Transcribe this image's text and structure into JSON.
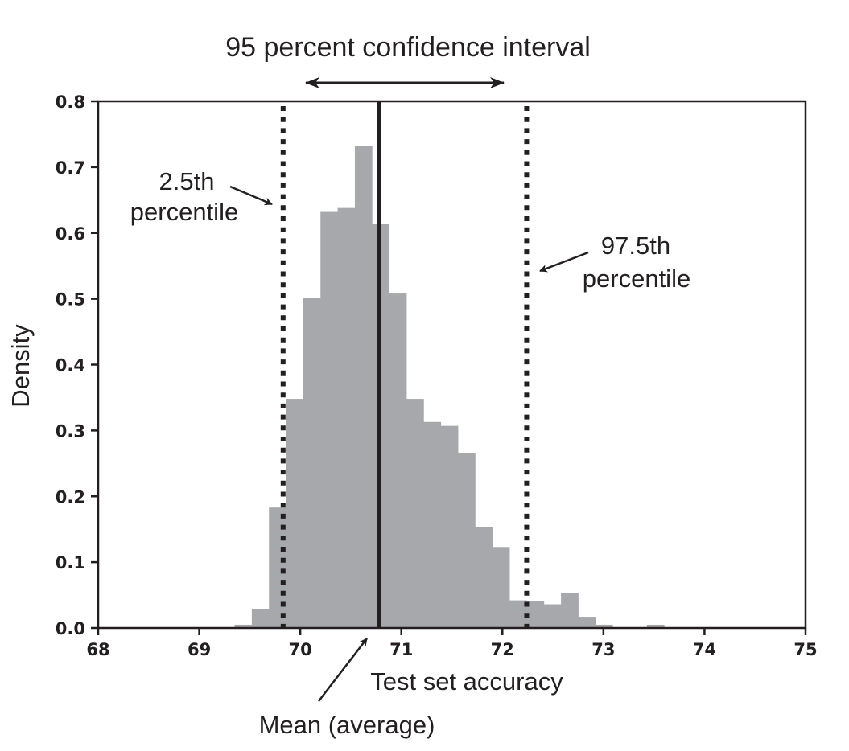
{
  "chart_data": {
    "type": "bar",
    "subtype": "histogram",
    "title": "95 percent confidence interval",
    "xlabel": "Test set accuracy",
    "ylabel": "Density",
    "xlim": [
      68,
      75
    ],
    "ylim": [
      0.0,
      0.8
    ],
    "xticks": [
      68,
      69,
      70,
      71,
      72,
      73,
      74,
      75
    ],
    "yticks": [
      "0.0",
      "0.1",
      "0.2",
      "0.3",
      "0.4",
      "0.5",
      "0.6",
      "0.7",
      "0.8"
    ],
    "grid": false,
    "legend": null,
    "bar_color": "#a7a8ac",
    "bin_width": 0.17,
    "bins": [
      {
        "x0": 69.35,
        "x1": 69.52,
        "density": 0.005
      },
      {
        "x0": 69.52,
        "x1": 69.69,
        "density": 0.029
      },
      {
        "x0": 69.69,
        "x1": 69.86,
        "density": 0.183
      },
      {
        "x0": 69.86,
        "x1": 70.03,
        "density": 0.348
      },
      {
        "x0": 70.03,
        "x1": 70.2,
        "density": 0.502
      },
      {
        "x0": 70.2,
        "x1": 70.37,
        "density": 0.632
      },
      {
        "x0": 70.37,
        "x1": 70.54,
        "density": 0.638
      },
      {
        "x0": 70.54,
        "x1": 70.71,
        "density": 0.732
      },
      {
        "x0": 70.71,
        "x1": 70.88,
        "density": 0.614
      },
      {
        "x0": 70.88,
        "x1": 71.05,
        "density": 0.508
      },
      {
        "x0": 71.05,
        "x1": 71.22,
        "density": 0.348
      },
      {
        "x0": 71.22,
        "x1": 71.39,
        "density": 0.313
      },
      {
        "x0": 71.39,
        "x1": 71.56,
        "density": 0.307
      },
      {
        "x0": 71.56,
        "x1": 71.73,
        "density": 0.265
      },
      {
        "x0": 71.73,
        "x1": 71.9,
        "density": 0.153
      },
      {
        "x0": 71.9,
        "x1": 72.07,
        "density": 0.123
      },
      {
        "x0": 72.07,
        "x1": 72.24,
        "density": 0.042
      },
      {
        "x0": 72.24,
        "x1": 72.41,
        "density": 0.041
      },
      {
        "x0": 72.41,
        "x1": 72.58,
        "density": 0.036
      },
      {
        "x0": 72.58,
        "x1": 72.75,
        "density": 0.053
      },
      {
        "x0": 72.75,
        "x1": 72.92,
        "density": 0.017
      },
      {
        "x0": 72.92,
        "x1": 73.09,
        "density": 0.005
      },
      {
        "x0": 73.43,
        "x1": 73.6,
        "density": 0.005
      }
    ],
    "reference_lines": [
      {
        "name": "mean",
        "x": 70.78,
        "style": "solid",
        "label": "Mean (average)"
      },
      {
        "name": "p2_5",
        "x": 69.83,
        "style": "dotted",
        "label": "2.5th percentile"
      },
      {
        "name": "p97_5",
        "x": 72.24,
        "style": "dotted",
        "label": "97.5th percentile"
      }
    ],
    "annotations": [
      {
        "text": "95 percent confidence interval",
        "type": "double-arrow",
        "from": 70.03,
        "to": 72.0
      },
      {
        "text": "2.5th percentile",
        "points_to": "p2_5"
      },
      {
        "text": "97.5th percentile",
        "points_to": "p97_5"
      },
      {
        "text": "Mean (average)",
        "points_to": "mean"
      }
    ]
  },
  "labels": {
    "title": "95 percent confidence interval",
    "xlabel": "Test set accuracy",
    "ylabel": "Density",
    "p2_5_line1": "2.5th",
    "p2_5_line2": "percentile",
    "p97_5_line1": "97.5th",
    "p97_5_line2": "percentile",
    "mean": "Mean (average)"
  },
  "colors": {
    "ink": "#231f20",
    "bar": "#a7a8ac",
    "background": "#ffffff"
  }
}
